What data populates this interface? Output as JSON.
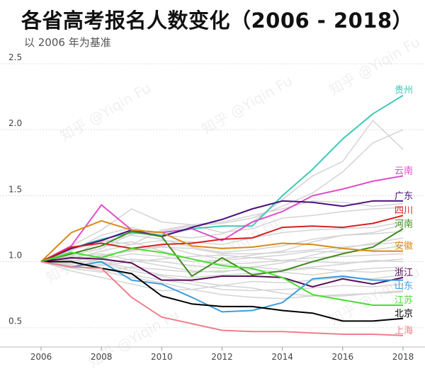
{
  "title": "各省高考报名人数变化（2006 - 2018）",
  "subtitle": "以 2006 年为基准",
  "watermark": "知乎 @Yiqin Fu",
  "chart_data": {
    "type": "line",
    "title": "各省高考报名人数变化（2006 - 2018）",
    "subtitle": "以 2006 年为基准",
    "xlabel": "",
    "ylabel": "",
    "xlim": [
      2006,
      2018
    ],
    "ylim": [
      0.3,
      2.5
    ],
    "x_ticks": [
      2006,
      2008,
      2010,
      2012,
      2014,
      2016,
      2018
    ],
    "y_ticks": [
      0.5,
      1.0,
      1.5,
      2.0,
      2.5
    ],
    "y_tick_labels": [
      "0.5",
      "1.0",
      "1.5",
      "2.0",
      "2.5"
    ],
    "grid": "horizontal",
    "x": [
      2006,
      2007,
      2008,
      2009,
      2010,
      2011,
      2012,
      2013,
      2014,
      2015,
      2016,
      2017,
      2018
    ],
    "series": [
      {
        "name": "贵州",
        "color": "#3ec9b4",
        "values": [
          1.0,
          1.1,
          1.17,
          1.22,
          1.2,
          1.25,
          1.27,
          1.27,
          1.5,
          1.7,
          1.93,
          2.12,
          2.26
        ]
      },
      {
        "name": "云南",
        "color": "#e04ec8",
        "values": [
          1.0,
          1.12,
          1.43,
          1.24,
          1.22,
          1.25,
          1.16,
          1.3,
          1.38,
          1.5,
          1.55,
          1.61,
          1.65
        ]
      },
      {
        "name": "广东",
        "color": "#4b0f7e",
        "values": [
          1.0,
          1.1,
          1.16,
          1.24,
          1.19,
          1.26,
          1.32,
          1.4,
          1.46,
          1.45,
          1.42,
          1.46,
          1.46
        ]
      },
      {
        "name": "四川",
        "color": "#d91f1f",
        "values": [
          1.0,
          1.11,
          1.14,
          1.1,
          1.13,
          1.14,
          1.17,
          1.18,
          1.26,
          1.27,
          1.26,
          1.29,
          1.35
        ]
      },
      {
        "name": "河南",
        "color": "#3f8c1c",
        "values": [
          1.0,
          1.06,
          1.12,
          1.23,
          1.19,
          0.89,
          1.03,
          0.9,
          0.93,
          1.0,
          1.06,
          1.11,
          1.25
        ]
      },
      {
        "name": "安徽",
        "color": "#d98a16",
        "values": [
          1.0,
          1.22,
          1.31,
          1.24,
          1.22,
          1.12,
          1.1,
          1.11,
          1.14,
          1.13,
          1.1,
          1.08,
          1.08
        ]
      },
      {
        "name": "浙江",
        "color": "#5a0d5a",
        "values": [
          1.0,
          1.03,
          1.02,
          0.99,
          0.86,
          0.86,
          0.89,
          0.89,
          0.88,
          0.81,
          0.87,
          0.83,
          0.88
        ]
      },
      {
        "name": "山东",
        "color": "#3c9ee0",
        "values": [
          1.0,
          0.96,
          1.0,
          0.86,
          0.83,
          0.73,
          0.62,
          0.63,
          0.69,
          0.87,
          0.89,
          0.86,
          0.86
        ]
      },
      {
        "name": "江苏",
        "color": "#45e02f",
        "values": [
          1.0,
          1.07,
          1.03,
          1.1,
          1.07,
          1.02,
          0.97,
          0.95,
          0.88,
          0.75,
          0.71,
          0.67,
          0.67
        ]
      },
      {
        "name": "北京",
        "color": "#000000",
        "values": [
          1.0,
          1.0,
          0.95,
          0.91,
          0.74,
          0.68,
          0.66,
          0.66,
          0.63,
          0.61,
          0.55,
          0.55,
          0.57
        ]
      },
      {
        "name": "上海",
        "color": "#ef7f8c",
        "values": [
          1.0,
          0.96,
          0.95,
          0.73,
          0.58,
          0.53,
          0.48,
          0.47,
          0.47,
          0.46,
          0.45,
          0.45,
          0.44
        ]
      }
    ],
    "background_series": [
      [
        1.0,
        1.08,
        1.2,
        1.26,
        1.2,
        1.18,
        1.21,
        1.3,
        1.47,
        1.65,
        1.76,
        2.07,
        1.85
      ],
      [
        1.0,
        1.05,
        1.1,
        1.21,
        1.23,
        1.27,
        1.29,
        1.33,
        1.42,
        1.52,
        1.68,
        1.9,
        2.0
      ],
      [
        1.0,
        1.12,
        1.24,
        1.4,
        1.3,
        1.28,
        1.3,
        1.35,
        1.4,
        1.46,
        1.45,
        1.42,
        1.44
      ],
      [
        1.0,
        1.04,
        1.16,
        1.13,
        1.24,
        1.28,
        1.22,
        1.25,
        1.33,
        1.35,
        1.38,
        1.4,
        1.41
      ],
      [
        1.0,
        1.02,
        1.08,
        1.13,
        1.16,
        1.15,
        1.13,
        1.18,
        1.22,
        1.24,
        1.25,
        1.26,
        1.3
      ],
      [
        1.0,
        1.0,
        1.05,
        1.08,
        1.12,
        1.06,
        1.02,
        1.05,
        1.08,
        1.15,
        1.2,
        1.22,
        1.28
      ],
      [
        1.0,
        0.98,
        1.02,
        1.06,
        1.04,
        1.0,
        1.01,
        1.03,
        1.05,
        1.08,
        1.07,
        1.09,
        1.12
      ],
      [
        1.0,
        1.06,
        1.12,
        1.15,
        1.08,
        1.02,
        0.98,
        0.99,
        1.01,
        1.0,
        0.99,
        1.0,
        1.02
      ],
      [
        1.0,
        0.96,
        0.98,
        1.02,
        1.0,
        0.97,
        0.95,
        0.96,
        0.94,
        0.96,
        0.98,
        1.01,
        1.0
      ],
      [
        1.0,
        0.95,
        0.92,
        0.96,
        0.94,
        0.92,
        0.93,
        0.94,
        0.92,
        0.9,
        0.93,
        0.95,
        0.96
      ],
      [
        1.0,
        1.03,
        1.0,
        0.95,
        0.9,
        0.88,
        0.9,
        0.91,
        0.93,
        0.95,
        0.93,
        0.92,
        0.94
      ],
      [
        1.0,
        0.93,
        0.88,
        0.83,
        0.78,
        0.79,
        0.82,
        0.85,
        0.84,
        0.86,
        0.88,
        0.87,
        0.9
      ],
      [
        1.0,
        0.99,
        0.95,
        0.9,
        0.86,
        0.83,
        0.79,
        0.78,
        0.79,
        0.8,
        0.82,
        0.81,
        0.83
      ],
      [
        1.0,
        1.01,
        0.99,
        0.93,
        0.89,
        0.85,
        0.82,
        0.8,
        0.76,
        0.74,
        0.74,
        0.76,
        0.78
      ],
      [
        1.0,
        0.97,
        0.93,
        0.88,
        0.84,
        0.79,
        0.75,
        0.73,
        0.72,
        0.74,
        0.75,
        0.76,
        0.77
      ],
      [
        1.0,
        1.04,
        1.06,
        1.01,
        0.97,
        0.93,
        0.92,
        0.96,
        0.99,
        1.05,
        1.1,
        1.14,
        1.18
      ],
      [
        1.0,
        1.09,
        1.15,
        1.2,
        1.17,
        1.11,
        1.07,
        1.09,
        1.12,
        1.17,
        1.2,
        1.21,
        1.23
      ],
      [
        1.0,
        1.02,
        1.04,
        1.09,
        1.11,
        1.1,
        1.06,
        1.06,
        1.07,
        1.09,
        1.11,
        1.13,
        1.15
      ],
      [
        1.0,
        0.99,
        0.97,
        1.0,
        1.02,
        1.04,
        1.05,
        1.03,
        1.01,
        1.03,
        1.04,
        1.05,
        1.06
      ]
    ]
  }
}
